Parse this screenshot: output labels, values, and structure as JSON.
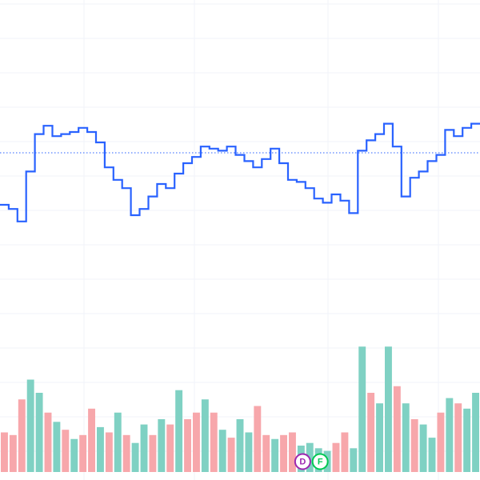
{
  "chart_data": {
    "type": "line",
    "line_style": "step",
    "grid": true,
    "colors": {
      "price_line": "#2962ff",
      "reference_line": "#2962ff",
      "volume_up": "#7fd1c3",
      "volume_down": "#f7a7ab",
      "grid": "#f0f3fa",
      "marker_dividend": "#9c27b0",
      "marker_financials": "#00c853"
    },
    "price_ylim": [
      0,
      100
    ],
    "volume_ylim": [
      0,
      100
    ],
    "reference_value": 65,
    "price": [
      {
        "x": 0,
        "y": 40
      },
      {
        "x": 1,
        "y": 38
      },
      {
        "x": 2,
        "y": 32
      },
      {
        "x": 3,
        "y": 56
      },
      {
        "x": 4,
        "y": 74
      },
      {
        "x": 5,
        "y": 78
      },
      {
        "x": 6,
        "y": 73
      },
      {
        "x": 7,
        "y": 74
      },
      {
        "x": 8,
        "y": 75
      },
      {
        "x": 9,
        "y": 77
      },
      {
        "x": 10,
        "y": 75
      },
      {
        "x": 11,
        "y": 70
      },
      {
        "x": 12,
        "y": 58
      },
      {
        "x": 13,
        "y": 52
      },
      {
        "x": 14,
        "y": 48
      },
      {
        "x": 15,
        "y": 35
      },
      {
        "x": 16,
        "y": 38
      },
      {
        "x": 17,
        "y": 44
      },
      {
        "x": 18,
        "y": 50
      },
      {
        "x": 19,
        "y": 48
      },
      {
        "x": 20,
        "y": 55
      },
      {
        "x": 21,
        "y": 60
      },
      {
        "x": 22,
        "y": 63
      },
      {
        "x": 23,
        "y": 68
      },
      {
        "x": 24,
        "y": 67
      },
      {
        "x": 25,
        "y": 66
      },
      {
        "x": 26,
        "y": 68
      },
      {
        "x": 27,
        "y": 64
      },
      {
        "x": 28,
        "y": 61
      },
      {
        "x": 29,
        "y": 58
      },
      {
        "x": 30,
        "y": 62
      },
      {
        "x": 31,
        "y": 67
      },
      {
        "x": 32,
        "y": 60
      },
      {
        "x": 33,
        "y": 52
      },
      {
        "x": 34,
        "y": 51
      },
      {
        "x": 35,
        "y": 48
      },
      {
        "x": 36,
        "y": 43
      },
      {
        "x": 37,
        "y": 41
      },
      {
        "x": 38,
        "y": 45
      },
      {
        "x": 39,
        "y": 42
      },
      {
        "x": 40,
        "y": 36
      },
      {
        "x": 41,
        "y": 66
      },
      {
        "x": 42,
        "y": 71
      },
      {
        "x": 43,
        "y": 74
      },
      {
        "x": 44,
        "y": 79
      },
      {
        "x": 45,
        "y": 68
      },
      {
        "x": 46,
        "y": 44
      },
      {
        "x": 47,
        "y": 53
      },
      {
        "x": 48,
        "y": 56
      },
      {
        "x": 49,
        "y": 61
      },
      {
        "x": 50,
        "y": 64
      },
      {
        "x": 51,
        "y": 76
      },
      {
        "x": 52,
        "y": 73
      },
      {
        "x": 53,
        "y": 77
      },
      {
        "x": 54,
        "y": 79
      }
    ],
    "volume": [
      {
        "x": 0,
        "v": 30,
        "dir": "down"
      },
      {
        "x": 1,
        "v": 28,
        "dir": "down"
      },
      {
        "x": 2,
        "v": 55,
        "dir": "down"
      },
      {
        "x": 3,
        "v": 70,
        "dir": "up"
      },
      {
        "x": 4,
        "v": 60,
        "dir": "up"
      },
      {
        "x": 5,
        "v": 45,
        "dir": "down"
      },
      {
        "x": 6,
        "v": 38,
        "dir": "up"
      },
      {
        "x": 7,
        "v": 32,
        "dir": "down"
      },
      {
        "x": 8,
        "v": 25,
        "dir": "up"
      },
      {
        "x": 9,
        "v": 28,
        "dir": "down"
      },
      {
        "x": 10,
        "v": 48,
        "dir": "down"
      },
      {
        "x": 11,
        "v": 34,
        "dir": "up"
      },
      {
        "x": 12,
        "v": 30,
        "dir": "down"
      },
      {
        "x": 13,
        "v": 45,
        "dir": "up"
      },
      {
        "x": 14,
        "v": 28,
        "dir": "down"
      },
      {
        "x": 15,
        "v": 22,
        "dir": "up"
      },
      {
        "x": 16,
        "v": 36,
        "dir": "up"
      },
      {
        "x": 17,
        "v": 28,
        "dir": "down"
      },
      {
        "x": 18,
        "v": 40,
        "dir": "up"
      },
      {
        "x": 19,
        "v": 36,
        "dir": "down"
      },
      {
        "x": 20,
        "v": 62,
        "dir": "up"
      },
      {
        "x": 21,
        "v": 40,
        "dir": "down"
      },
      {
        "x": 22,
        "v": 45,
        "dir": "down"
      },
      {
        "x": 23,
        "v": 55,
        "dir": "up"
      },
      {
        "x": 24,
        "v": 45,
        "dir": "down"
      },
      {
        "x": 25,
        "v": 32,
        "dir": "up"
      },
      {
        "x": 26,
        "v": 26,
        "dir": "down"
      },
      {
        "x": 27,
        "v": 40,
        "dir": "up"
      },
      {
        "x": 28,
        "v": 30,
        "dir": "up"
      },
      {
        "x": 29,
        "v": 50,
        "dir": "down"
      },
      {
        "x": 30,
        "v": 28,
        "dir": "down"
      },
      {
        "x": 31,
        "v": 25,
        "dir": "up"
      },
      {
        "x": 32,
        "v": 28,
        "dir": "down"
      },
      {
        "x": 33,
        "v": 30,
        "dir": "down"
      },
      {
        "x": 34,
        "v": 20,
        "dir": "up"
      },
      {
        "x": 35,
        "v": 22,
        "dir": "up"
      },
      {
        "x": 36,
        "v": 18,
        "dir": "up"
      },
      {
        "x": 37,
        "v": 16,
        "dir": "up"
      },
      {
        "x": 38,
        "v": 22,
        "dir": "down"
      },
      {
        "x": 39,
        "v": 30,
        "dir": "down"
      },
      {
        "x": 40,
        "v": 18,
        "dir": "up"
      },
      {
        "x": 41,
        "v": 95,
        "dir": "up"
      },
      {
        "x": 42,
        "v": 60,
        "dir": "down"
      },
      {
        "x": 43,
        "v": 52,
        "dir": "up"
      },
      {
        "x": 44,
        "v": 95,
        "dir": "up"
      },
      {
        "x": 45,
        "v": 65,
        "dir": "down"
      },
      {
        "x": 46,
        "v": 52,
        "dir": "up"
      },
      {
        "x": 47,
        "v": 40,
        "dir": "down"
      },
      {
        "x": 48,
        "v": 36,
        "dir": "up"
      },
      {
        "x": 49,
        "v": 26,
        "dir": "up"
      },
      {
        "x": 50,
        "v": 45,
        "dir": "down"
      },
      {
        "x": 51,
        "v": 56,
        "dir": "up"
      },
      {
        "x": 52,
        "v": 52,
        "dir": "down"
      },
      {
        "x": 53,
        "v": 48,
        "dir": "up"
      },
      {
        "x": 54,
        "v": 60,
        "dir": "up"
      }
    ],
    "event_markers": [
      {
        "x": 34,
        "label": "D",
        "color": "#9c27b0",
        "icon": "dividend-marker-icon"
      },
      {
        "x": 36,
        "label": "F",
        "color": "#00c853",
        "icon": "financials-marker-icon"
      }
    ]
  }
}
